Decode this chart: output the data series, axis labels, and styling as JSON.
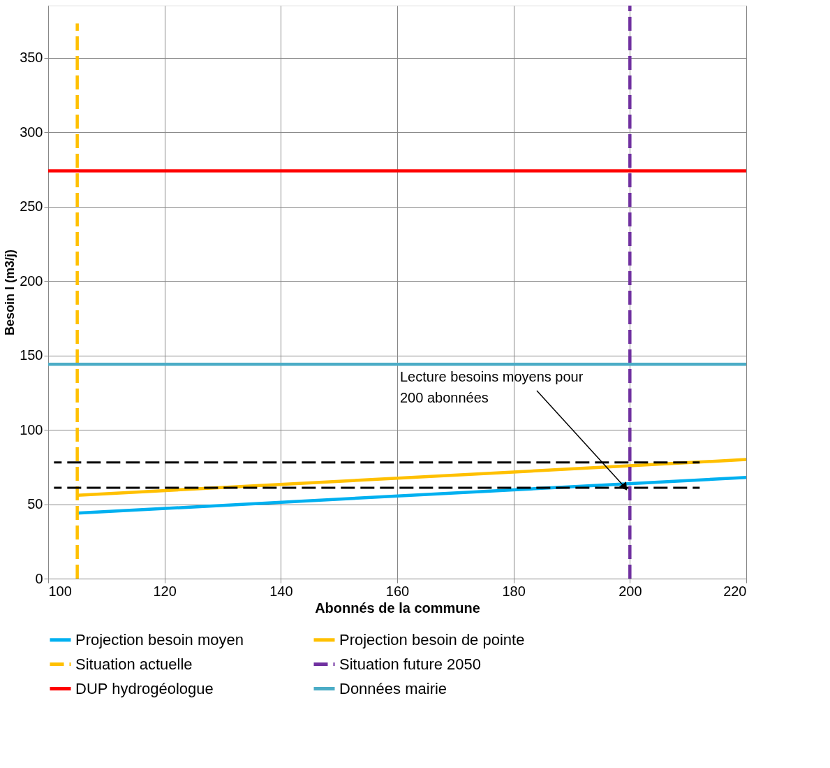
{
  "chart_data": {
    "type": "line",
    "xlabel": "Abonnés de la commune",
    "ylabel": "Besoin I (m3/j)",
    "xlim": [
      100,
      220
    ],
    "xticks": [
      100,
      120,
      140,
      160,
      180,
      200,
      220
    ],
    "ylim": [
      0,
      385
    ],
    "yticks": [
      0,
      50,
      100,
      150,
      200,
      250,
      300,
      350
    ],
    "grid": true,
    "legend": "bottom",
    "marker": "none",
    "series": [
      {
        "name": "Projection besoin moyen",
        "color": "#00b0f0",
        "x": [
          105,
          220
        ],
        "values": [
          44,
          68
        ],
        "line_style": "solid"
      },
      {
        "name": "Projection besoin de pointe",
        "color": "#ffc000",
        "x": [
          105,
          220
        ],
        "values": [
          56,
          80
        ],
        "line_style": "solid"
      },
      {
        "name": "Situation actuelle",
        "color": "#ffc000",
        "x": [
          105,
          105
        ],
        "values": [
          0,
          373
        ],
        "line_style": "dashed"
      },
      {
        "name": "Situation future 2050",
        "color": "#7030a0",
        "x": [
          200,
          200
        ],
        "values": [
          0,
          385
        ],
        "line_style": "dashed"
      },
      {
        "name": "DUP hydrogéologue",
        "color": "#ff0000",
        "x": [
          100,
          220
        ],
        "values": [
          274,
          274
        ],
        "line_style": "solid"
      },
      {
        "name": "Données mairie",
        "color": "#4bacc6",
        "x": [
          100,
          220
        ],
        "values": [
          144,
          144
        ],
        "line_style": "solid"
      },
      {
        "color": "#000000",
        "x": [
          101,
          212
        ],
        "values": [
          78,
          78
        ],
        "line_style": "dashed"
      },
      {
        "color": "#000000",
        "x": [
          101,
          212
        ],
        "values": [
          61,
          61
        ],
        "line_style": "dashed"
      }
    ],
    "annotations": [
      {
        "text": "Lecture besoins moyens pour 200 abonnées",
        "x": 199,
        "y": 62
      }
    ]
  }
}
